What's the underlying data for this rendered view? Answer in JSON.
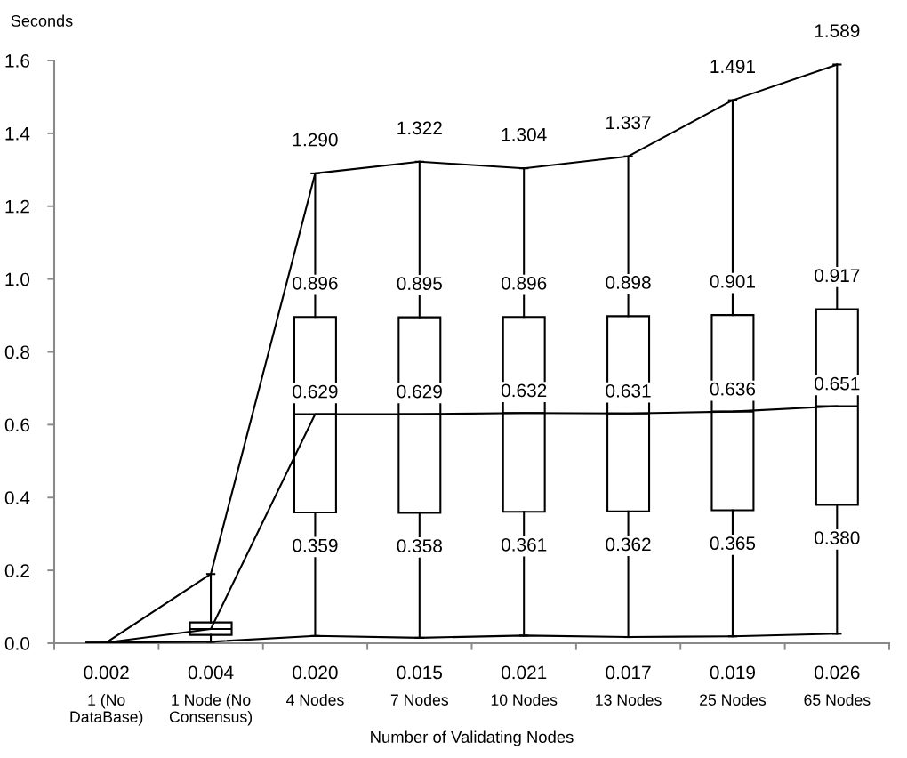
{
  "chart_data": {
    "type": "box",
    "xlabel": "Number of Validating Nodes",
    "ylabel": "Seconds",
    "categories": [
      "1 (No\nDataBase)",
      "1 Node (No\nConsensus)",
      "4 Nodes",
      "7 Nodes",
      "10 Nodes",
      "13 Nodes",
      "25 Nodes",
      "65 Nodes"
    ],
    "ylim": [
      0,
      1.6
    ],
    "yticks": [
      {
        "value": 0,
        "label": "0.0"
      },
      0.2,
      0.4,
      0.6,
      0.8,
      {
        "value": 1,
        "label": "1.0"
      },
      1.2,
      1.4,
      1.6
    ],
    "series": [
      {
        "type": "box",
        "color": "#000000",
        "boxes": [
          {
            "low": 0.002,
            "q1": 0.002,
            "median": 0.002,
            "q3": 0.002,
            "high": 0.002
          },
          {
            "low": 0.004,
            "q1": 0.023,
            "median": 0.039,
            "q3": 0.057,
            "high": 0.19
          },
          {
            "low": 0.02,
            "q1": 0.359,
            "median": 0.629,
            "q3": 0.896,
            "high": 1.29
          },
          {
            "low": 0.015,
            "q1": 0.358,
            "median": 0.629,
            "q3": 0.895,
            "high": 1.322
          },
          {
            "low": 0.021,
            "q1": 0.361,
            "median": 0.632,
            "q3": 0.896,
            "high": 1.304
          },
          {
            "low": 0.017,
            "q1": 0.362,
            "median": 0.631,
            "q3": 0.898,
            "high": 1.337
          },
          {
            "low": 0.019,
            "q1": 0.365,
            "median": 0.636,
            "q3": 0.901,
            "high": 1.491
          },
          {
            "low": 0.026,
            "q1": 0.38,
            "median": 0.651,
            "q3": 0.917,
            "high": 1.589
          }
        ]
      },
      {
        "type": "line",
        "color": "#000000",
        "values": [
          0.002,
          0.19,
          1.29,
          1.322,
          1.304,
          1.337,
          1.491,
          1.589
        ],
        "value_labels": [
          null,
          null,
          "1.290",
          "1.322",
          "1.304",
          "1.337",
          "1.491",
          "1.589"
        ]
      },
      {
        "type": "line",
        "color": "#000000",
        "values": [
          0.002,
          0.039,
          0.629,
          0.629,
          0.632,
          0.631,
          0.636,
          0.651
        ],
        "value_labels": [
          null,
          null,
          "0.629",
          "0.629",
          "0.632",
          "0.631",
          "0.636",
          "0.651"
        ]
      },
      {
        "type": "line",
        "color": "#000000",
        "values": [
          0.002,
          0.004,
          0.02,
          0.015,
          0.021,
          0.017,
          0.019,
          0.026
        ],
        "value_labels": [
          "0.002",
          "0.004",
          "0.020",
          "0.015",
          "0.021",
          "0.017",
          "0.019",
          "0.026"
        ]
      }
    ],
    "annotations": [
      {
        "text": "0.896",
        "x": "4 Nodes",
        "y": 0.896
      },
      {
        "text": "0.895",
        "x": "7 Nodes",
        "y": 0.895
      },
      {
        "text": "0.896",
        "x": "10 Nodes",
        "y": 0.896
      },
      {
        "text": "0.898",
        "x": "13 Nodes",
        "y": 0.898
      },
      {
        "text": "0.901",
        "x": "25 Nodes",
        "y": 0.901
      },
      {
        "text": "0.917",
        "x": "65 Nodes",
        "y": 0.917
      },
      {
        "text": "0.359",
        "x": "4 Nodes",
        "y": 0.359
      },
      {
        "text": "0.358",
        "x": "7 Nodes",
        "y": 0.358
      },
      {
        "text": "0.361",
        "x": "10 Nodes",
        "y": 0.361
      },
      {
        "text": "0.362",
        "x": "13 Nodes",
        "y": 0.362
      },
      {
        "text": "0.365",
        "x": "25 Nodes",
        "y": 0.365
      },
      {
        "text": "0.380",
        "x": "65 Nodes",
        "y": 0.38
      }
    ]
  }
}
